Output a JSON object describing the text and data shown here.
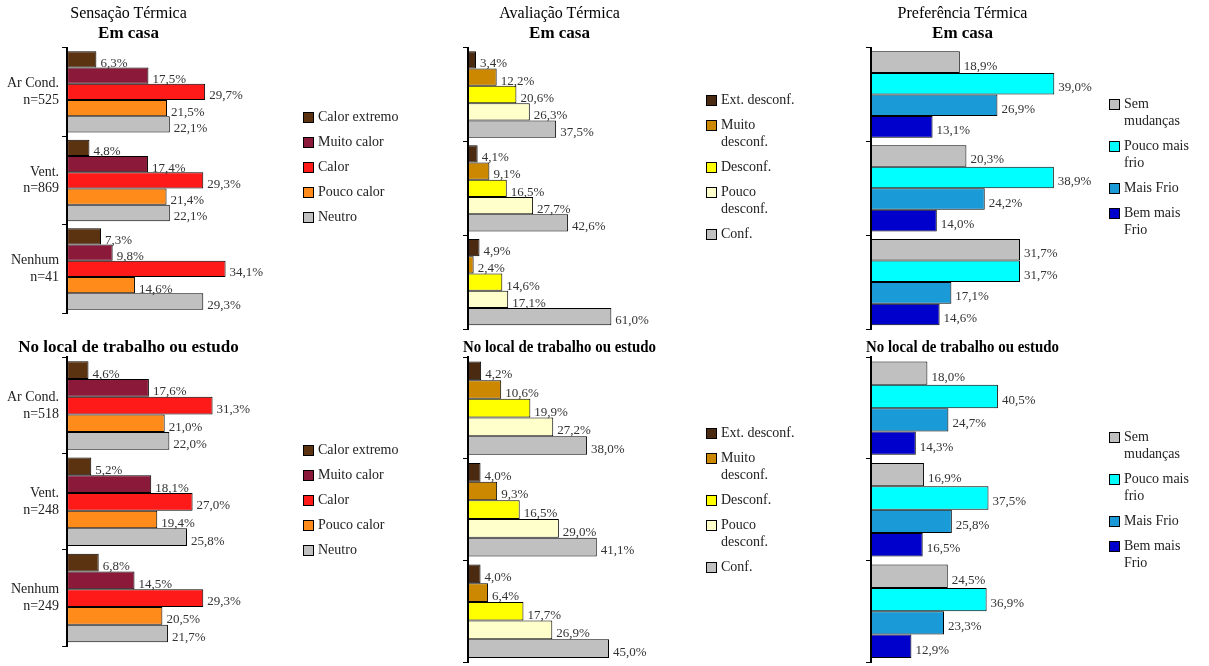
{
  "chart_data": [
    {
      "type": "bar",
      "orientation": "horizontal",
      "title": "Sensação Térmica",
      "subtitle": "Em casa",
      "categories": [
        "Ar Cond.\nn=525",
        "Vent.\nn=869",
        "Nenhum\nn=41"
      ],
      "legend": "right",
      "tick_labels": "y",
      "series": [
        {
          "name": "Calor extremo",
          "color": "#5c3310",
          "values": [
            6.3,
            4.8,
            7.3
          ],
          "value_labels": [
            "6,3%",
            "4,8%",
            "7,3%"
          ]
        },
        {
          "name": "Muito calor",
          "color": "#8b1a3a",
          "values": [
            17.5,
            17.4,
            9.8
          ],
          "value_labels": [
            "17,5%",
            "17,4%",
            "9,8%"
          ]
        },
        {
          "name": "Calor",
          "color": "#ff1a1a",
          "values": [
            29.7,
            29.3,
            34.1
          ],
          "value_labels": [
            "29,7%",
            "29,3%",
            "34,1%"
          ]
        },
        {
          "name": "Pouco calor",
          "color": "#ff8c1a",
          "values": [
            21.5,
            21.4,
            14.6
          ],
          "value_labels": [
            "21,5%",
            "21,4%",
            "14,6%"
          ]
        },
        {
          "name": "Neutro",
          "color": "#c0c0c0",
          "values": [
            22.1,
            22.1,
            29.3
          ],
          "value_labels": [
            "22,1%",
            "22,1%",
            "29,3%"
          ]
        }
      ]
    },
    {
      "type": "bar",
      "orientation": "horizontal",
      "title": "Avaliação Térmica",
      "subtitle": "Em casa",
      "categories": [
        null,
        null,
        null
      ],
      "legend": "right",
      "tick_labels": false,
      "series": [
        {
          "name": "Ext. desconf.",
          "color": "#4a2a10",
          "values": [
            3.4,
            4.1,
            4.9
          ],
          "value_labels": [
            "3,4%",
            "4,1%",
            "4,9%"
          ]
        },
        {
          "name": "Muito desconf.",
          "color": "#cc8800",
          "values": [
            12.2,
            9.1,
            2.4
          ],
          "value_labels": [
            "12,2%",
            "9,1%",
            "2,4%"
          ]
        },
        {
          "name": "Desconf.",
          "color": "#ffff00",
          "values": [
            20.6,
            16.5,
            14.6
          ],
          "value_labels": [
            "20,6%",
            "16,5%",
            "14,6%"
          ]
        },
        {
          "name": "Pouco desconf.",
          "color": "#ffffcc",
          "values": [
            26.3,
            27.7,
            17.1
          ],
          "value_labels": [
            "26,3%",
            "27,7%",
            "17,1%"
          ]
        },
        {
          "name": "Conf.",
          "color": "#c0c0c0",
          "values": [
            37.5,
            42.6,
            61.0
          ],
          "value_labels": [
            "37,5%",
            "42,6%",
            "61,0%"
          ]
        }
      ]
    },
    {
      "type": "bar",
      "orientation": "horizontal",
      "title": "Preferência Térmica",
      "subtitle": "Em casa",
      "categories": [
        null,
        null,
        null
      ],
      "legend": "right",
      "tick_labels": false,
      "series": [
        {
          "name": "Sem mudanças",
          "color": "#c0c0c0",
          "values": [
            18.9,
            20.3,
            31.7
          ],
          "value_labels": [
            "18,9%",
            "20,3%",
            "31,7%"
          ]
        },
        {
          "name": "Pouco mais frio",
          "color": "#00ffff",
          "values": [
            39.0,
            38.9,
            31.7
          ],
          "value_labels": [
            "39,0%",
            "38,9%",
            "31,7%"
          ]
        },
        {
          "name": "Mais Frio",
          "color": "#1a9ad6",
          "values": [
            26.9,
            24.2,
            17.1
          ],
          "value_labels": [
            "26,9%",
            "24,2%",
            "17,1%"
          ]
        },
        {
          "name": "Bem mais Frio",
          "color": "#0000cc",
          "values": [
            13.1,
            14.0,
            14.6
          ],
          "value_labels": [
            "13,1%",
            "14,0%",
            "14,6%"
          ]
        }
      ]
    },
    {
      "type": "bar",
      "orientation": "horizontal",
      "title": "No local de trabalho ou estudo",
      "categories": [
        "Ar Cond.\nn=518",
        "Vent.\nn=248",
        "Nenhum\nn=249"
      ],
      "legend": "right",
      "tick_labels": "y",
      "series": [
        {
          "name": "Calor extremo",
          "color": "#5c3310",
          "values": [
            4.6,
            5.2,
            6.8
          ],
          "value_labels": [
            "4,6%",
            "5,2%",
            "6,8%"
          ]
        },
        {
          "name": "Muito calor",
          "color": "#8b1a3a",
          "values": [
            17.6,
            18.1,
            14.5
          ],
          "value_labels": [
            "17,6%",
            "18,1%",
            "14,5%"
          ]
        },
        {
          "name": "Calor",
          "color": "#ff1a1a",
          "values": [
            31.3,
            27.0,
            29.3
          ],
          "value_labels": [
            "31,3%",
            "27,0%",
            "29,3%"
          ]
        },
        {
          "name": "Pouco calor",
          "color": "#ff8c1a",
          "values": [
            21.0,
            19.4,
            20.5
          ],
          "value_labels": [
            "21,0%",
            "19,4%",
            "20,5%"
          ]
        },
        {
          "name": "Neutro",
          "color": "#c0c0c0",
          "values": [
            22.0,
            25.8,
            21.7
          ],
          "value_labels": [
            "22,0%",
            "25,8%",
            "21,7%"
          ]
        }
      ]
    },
    {
      "type": "bar",
      "orientation": "horizontal",
      "title": "No local de trabalho ou estudo",
      "categories": [
        null,
        null,
        null
      ],
      "legend": "right",
      "tick_labels": false,
      "series": [
        {
          "name": "Ext. desconf.",
          "color": "#4a2a10",
          "values": [
            4.2,
            4.0,
            4.0
          ],
          "value_labels": [
            "4,2%",
            "4,0%",
            "4,0%"
          ]
        },
        {
          "name": "Muito desconf.",
          "color": "#cc8800",
          "values": [
            10.6,
            9.3,
            6.4
          ],
          "value_labels": [
            "10,6%",
            "9,3%",
            "6,4%"
          ]
        },
        {
          "name": "Desconf.",
          "color": "#ffff00",
          "values": [
            19.9,
            16.5,
            17.7
          ],
          "value_labels": [
            "19,9%",
            "16,5%",
            "17,7%"
          ]
        },
        {
          "name": "Pouco desconf.",
          "color": "#ffffcc",
          "values": [
            27.2,
            29.0,
            26.9
          ],
          "value_labels": [
            "27,2%",
            "29,0%",
            "26,9%"
          ]
        },
        {
          "name": "Conf.",
          "color": "#c0c0c0",
          "values": [
            38.0,
            41.1,
            45.0
          ],
          "value_labels": [
            "38,0%",
            "41,1%",
            "45,0%"
          ]
        }
      ]
    },
    {
      "type": "bar",
      "orientation": "horizontal",
      "title": "No local de trabalho ou estudo",
      "categories": [
        null,
        null,
        null
      ],
      "legend": "right",
      "tick_labels": false,
      "series": [
        {
          "name": "Sem mudanças",
          "color": "#c0c0c0",
          "values": [
            18.0,
            16.9,
            24.5
          ],
          "value_labels": [
            "18,0%",
            "16,9%",
            "24,5%"
          ]
        },
        {
          "name": "Pouco mais frio",
          "color": "#00ffff",
          "values": [
            40.5,
            37.5,
            36.9
          ],
          "value_labels": [
            "40,5%",
            "37,5%",
            "36,9%"
          ]
        },
        {
          "name": "Mais Frio",
          "color": "#1a9ad6",
          "values": [
            24.7,
            25.8,
            23.3
          ],
          "value_labels": [
            "24,7%",
            "25,8%",
            "23,3%"
          ]
        },
        {
          "name": "Bem mais Frio",
          "color": "#0000cc",
          "values": [
            14.3,
            16.5,
            12.9
          ],
          "value_labels": [
            "14,3%",
            "16,5%",
            "12,9%"
          ]
        }
      ]
    }
  ]
}
